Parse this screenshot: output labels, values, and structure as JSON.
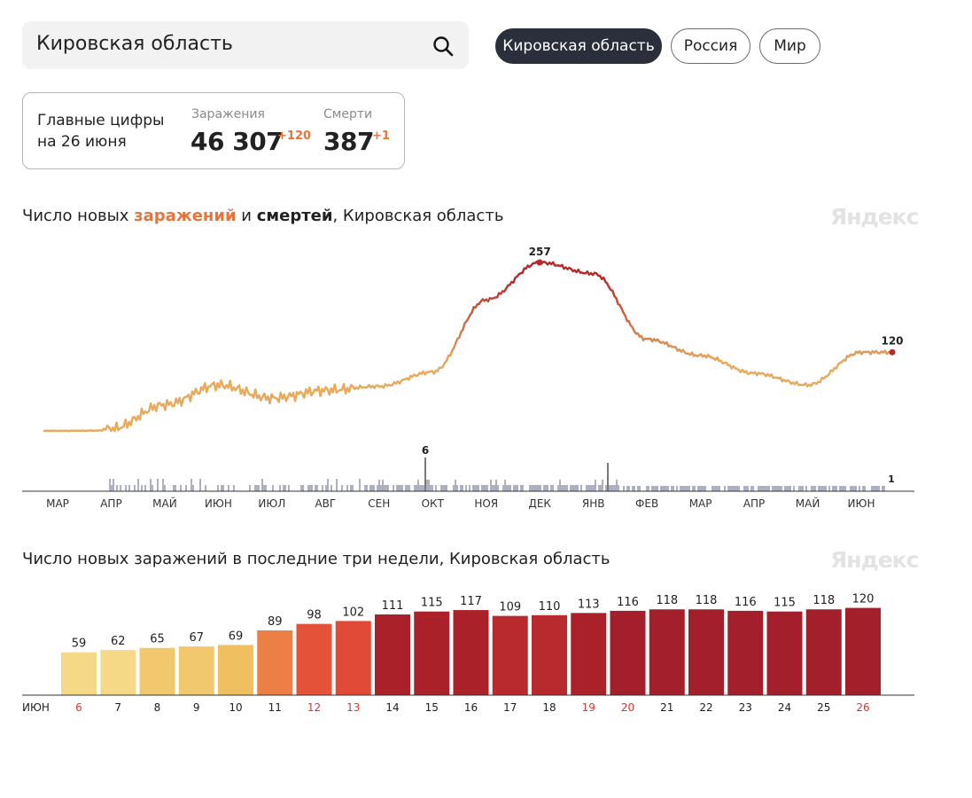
{
  "search": {
    "value": "Кировская область"
  },
  "filters": [
    {
      "label": "Кировская область",
      "active": true
    },
    {
      "label": "Россия",
      "active": false
    },
    {
      "label": "Мир",
      "active": false
    }
  ],
  "summary": {
    "title_line1": "Главные цифры",
    "title_line2": "на 26 июня",
    "infections_label": "Заражения",
    "infections_value": "46 307",
    "infections_delta": "+120",
    "deaths_label": "Смерти",
    "deaths_value": "387",
    "deaths_delta": "+1"
  },
  "chart1": {
    "title_prefix": "Число новых ",
    "title_infections": "заражений",
    "title_and": " и ",
    "title_deaths": "смертей",
    "title_suffix": ", Кировская область",
    "watermark": "Яндекс",
    "month_labels": [
      "МАР",
      "АПР",
      "МАЙ",
      "ИЮН",
      "ИЮЛ",
      "АВГ",
      "СЕН",
      "ОКТ",
      "НОЯ",
      "ДЕК",
      "ЯНВ",
      "ФЕВ",
      "МАР",
      "АПР",
      "МАЙ",
      "ИЮН"
    ],
    "peak_label": "257",
    "last_label": "120",
    "deaths_peak_label": "6",
    "deaths_last_label": "1"
  },
  "chart2": {
    "title": "Число новых заражений в последние три недели, Кировская область",
    "watermark": "Яндекс",
    "month": "ИЮН"
  },
  "chart_data": [
    {
      "type": "line",
      "title": "Число новых заражений и смертей, Кировская область",
      "x_months": [
        "МАР",
        "АПР",
        "МАЙ",
        "ИЮН",
        "ИЮЛ",
        "АВГ",
        "СЕН",
        "ОКТ",
        "НОЯ",
        "ДЕК",
        "ЯНВ",
        "ФЕВ",
        "МАР",
        "АПР",
        "МАЙ",
        "ИЮН"
      ],
      "series": [
        {
          "name": "заражения",
          "x": [
            "МАР",
            "АПР",
            "МАЙ",
            "ИЮН",
            "ИЮЛ",
            "АВГ",
            "СЕН",
            "ОКТ",
            "НОЯ",
            "ДЕК",
            "ЯНВ",
            "ФЕВ",
            "МАР",
            "АПР",
            "МАЙ",
            "ИЮН"
          ],
          "values": [
            0,
            3,
            40,
            70,
            50,
            62,
            68,
            90,
            200,
            257,
            240,
            140,
            115,
            88,
            70,
            120
          ]
        },
        {
          "name": "смерти",
          "peak_value": 6,
          "last_value": 1
        }
      ],
      "annotations": {
        "peak": 257,
        "last": 120,
        "deaths_peak": 6,
        "deaths_last": 1
      },
      "colors": {
        "low": "#e8a95c",
        "high": "#b52a2a",
        "deaths": "#5a6280"
      }
    },
    {
      "type": "bar",
      "title": "Число новых заражений в последние три недели, Кировская область",
      "categories": [
        "6",
        "7",
        "8",
        "9",
        "10",
        "11",
        "12",
        "13",
        "14",
        "15",
        "16",
        "17",
        "18",
        "19",
        "20",
        "21",
        "22",
        "23",
        "24",
        "25",
        "26"
      ],
      "values": [
        59,
        62,
        65,
        67,
        69,
        89,
        98,
        102,
        111,
        115,
        117,
        109,
        110,
        113,
        116,
        118,
        118,
        116,
        115,
        118,
        120
      ],
      "weekend_days": [
        "6",
        "12",
        "13",
        "19",
        "20",
        "26"
      ],
      "colors": [
        "#f5d987",
        "#f5d987",
        "#f2c86e",
        "#f2c86e",
        "#f0c060",
        "#ec7f45",
        "#e4523a",
        "#e04a36",
        "#ab2129",
        "#ab2129",
        "#ab2129",
        "#b82a2e",
        "#b82a2e",
        "#ab2129",
        "#a21f2b",
        "#a21f2b",
        "#a21f2b",
        "#a21f2b",
        "#a21f2b",
        "#a21f2b",
        "#a21f2b"
      ]
    }
  ]
}
